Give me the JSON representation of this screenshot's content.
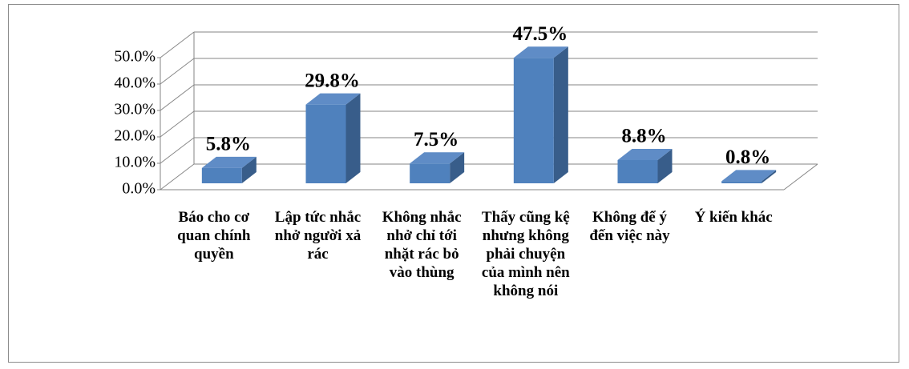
{
  "chart_data": {
    "type": "bar3d",
    "categories": [
      "Báo cho cơ quan chính quyền",
      "Lập tức nhắc nhở người xả rác",
      "Không nhắc nhở chỉ tới nhặt rác bỏ vào thùng",
      "Thấy cũng kệ nhưng không phải chuyện của mình nên không nói",
      "Không để ý đến việc này",
      "Ý kiến khác"
    ],
    "values": [
      5.8,
      29.8,
      7.5,
      47.5,
      8.8,
      0.8
    ],
    "value_labels": [
      "5.8%",
      "29.8%",
      "7.5%",
      "47.5%",
      "8.8%",
      "0.8%"
    ],
    "color": "#4f81bd",
    "ylim": [
      0,
      50
    ],
    "yticks": [
      {
        "value": 0,
        "label": "0.0%"
      },
      {
        "value": 10,
        "label": "10.0%"
      },
      {
        "value": 20,
        "label": "20.0%"
      },
      {
        "value": 30,
        "label": "30.0%"
      },
      {
        "value": 40,
        "label": "40.0%"
      },
      {
        "value": 50,
        "label": "50.0%"
      }
    ],
    "grid": true
  }
}
